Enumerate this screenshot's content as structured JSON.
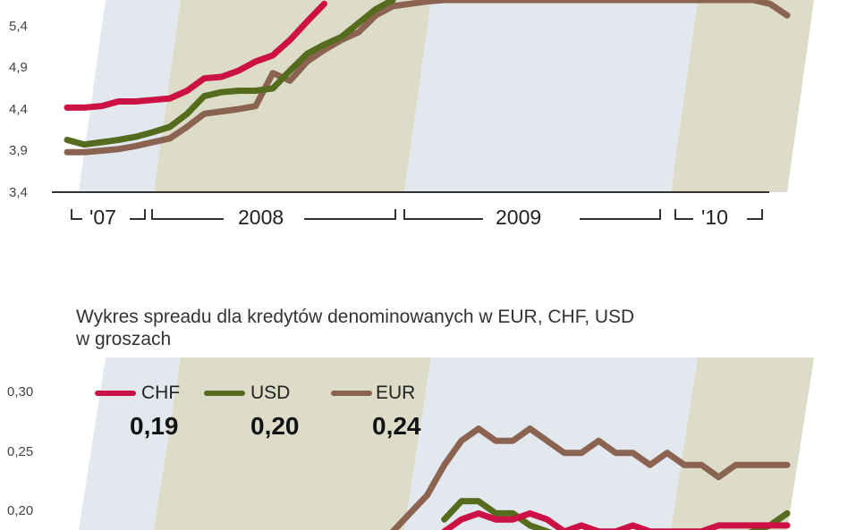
{
  "chart_data": [
    {
      "type": "line",
      "title": "",
      "ylim": [
        3.4,
        5.9
      ],
      "yticks": [
        "5,4",
        "4,9",
        "4,4",
        "3,9",
        "3,4"
      ],
      "period_labels": [
        "'07",
        "2008",
        "2009",
        "'10"
      ],
      "shaded_bands": true,
      "x": [
        1,
        2,
        3,
        4,
        5,
        6,
        7,
        8,
        9,
        10,
        11,
        12,
        13,
        14,
        15,
        16,
        17,
        18,
        19,
        20,
        21,
        22,
        23,
        24,
        25,
        26,
        27,
        28,
        29,
        30,
        31,
        32,
        33,
        34,
        35,
        36,
        37,
        38,
        39,
        40,
        41,
        42,
        43
      ],
      "series": [
        {
          "name": "CHF",
          "color": "#cc1144",
          "values": [
            4.5,
            4.5,
            4.52,
            4.58,
            4.58,
            4.6,
            4.62,
            4.72,
            4.88,
            4.9,
            4.98,
            5.1,
            5.18,
            5.38,
            5.62,
            5.85,
            null,
            null,
            null,
            null,
            null,
            null,
            null,
            null,
            null,
            null,
            null,
            null,
            null,
            null,
            null,
            null,
            null,
            null,
            null,
            null,
            null,
            null,
            null,
            null,
            null,
            null,
            null
          ]
        },
        {
          "name": "USD",
          "color": "#556b1e",
          "values": [
            4.08,
            4.02,
            4.05,
            4.08,
            4.12,
            4.18,
            4.25,
            4.42,
            4.65,
            4.7,
            4.72,
            4.72,
            4.75,
            4.98,
            5.2,
            5.32,
            5.42,
            5.6,
            5.78,
            5.9,
            null,
            null,
            null,
            null,
            null,
            null,
            null,
            null,
            null,
            null,
            null,
            null,
            null,
            null,
            null,
            null,
            null,
            null,
            null,
            null,
            null,
            null,
            null
          ]
        },
        {
          "name": "EUR",
          "color": "#8a6450",
          "values": [
            3.92,
            3.92,
            3.94,
            3.96,
            4.0,
            4.05,
            4.1,
            4.25,
            4.42,
            4.45,
            4.48,
            4.52,
            4.95,
            4.85,
            5.1,
            5.25,
            5.38,
            5.48,
            5.7,
            5.82,
            5.85,
            5.88,
            5.9,
            5.9,
            5.9,
            5.9,
            5.9,
            5.9,
            5.9,
            5.9,
            5.9,
            5.9,
            5.9,
            5.9,
            5.9,
            5.9,
            5.9,
            5.9,
            5.9,
            5.9,
            5.9,
            5.85,
            5.7
          ]
        }
      ]
    },
    {
      "type": "line",
      "title": "Wykres spreadu dla kredytów denominowanych w EUR, CHF, USD w groszach",
      "title_lines": [
        "Wykres spreadu dla kredytów denominowanych w EUR, CHF, USD",
        "w groszach"
      ],
      "ylim": [
        0.17,
        0.3
      ],
      "yticks": [
        "0,30",
        "0,25",
        "0,20"
      ],
      "shaded_bands": true,
      "x": [
        1,
        2,
        3,
        4,
        5,
        6,
        7,
        8,
        9,
        10,
        11,
        12,
        13,
        14,
        15,
        16,
        17,
        18,
        19,
        20,
        21,
        22,
        23,
        24,
        25,
        26,
        27,
        28,
        29,
        30,
        31,
        32,
        33,
        34,
        35,
        36,
        37,
        38,
        39,
        40,
        41,
        42,
        43
      ],
      "series": [
        {
          "name": "CHF",
          "color": "#cc1144",
          "last_value": "0,19",
          "values": [
            null,
            null,
            null,
            null,
            null,
            null,
            null,
            null,
            null,
            null,
            null,
            null,
            null,
            null,
            null,
            null,
            null,
            null,
            null,
            null,
            null,
            null,
            0.185,
            0.195,
            0.2,
            0.195,
            0.195,
            0.2,
            0.195,
            0.185,
            0.19,
            0.185,
            0.185,
            0.19,
            0.185,
            0.185,
            0.185,
            0.185,
            0.19,
            0.19,
            0.19,
            0.19,
            0.19
          ]
        },
        {
          "name": "USD",
          "color": "#556b1e",
          "last_value": "0,20",
          "values": [
            null,
            null,
            null,
            null,
            null,
            null,
            null,
            null,
            null,
            null,
            null,
            null,
            null,
            null,
            null,
            null,
            null,
            null,
            null,
            null,
            null,
            null,
            0.195,
            0.21,
            0.21,
            0.2,
            0.2,
            0.19,
            0.185,
            0.18,
            0.18,
            0.18,
            0.18,
            0.18,
            0.18,
            0.18,
            0.18,
            0.18,
            0.18,
            0.18,
            0.185,
            0.19,
            0.2
          ]
        },
        {
          "name": "EUR",
          "color": "#8a6450",
          "last_value": "0,24",
          "values": [
            null,
            null,
            null,
            null,
            null,
            null,
            null,
            null,
            null,
            null,
            null,
            null,
            null,
            null,
            null,
            null,
            null,
            null,
            0.17,
            0.185,
            0.2,
            0.215,
            0.24,
            0.26,
            0.27,
            0.26,
            0.26,
            0.27,
            0.26,
            0.25,
            0.25,
            0.26,
            0.25,
            0.25,
            0.24,
            0.25,
            0.24,
            0.24,
            0.23,
            0.24,
            0.24,
            0.24,
            0.24
          ]
        }
      ]
    }
  ]
}
